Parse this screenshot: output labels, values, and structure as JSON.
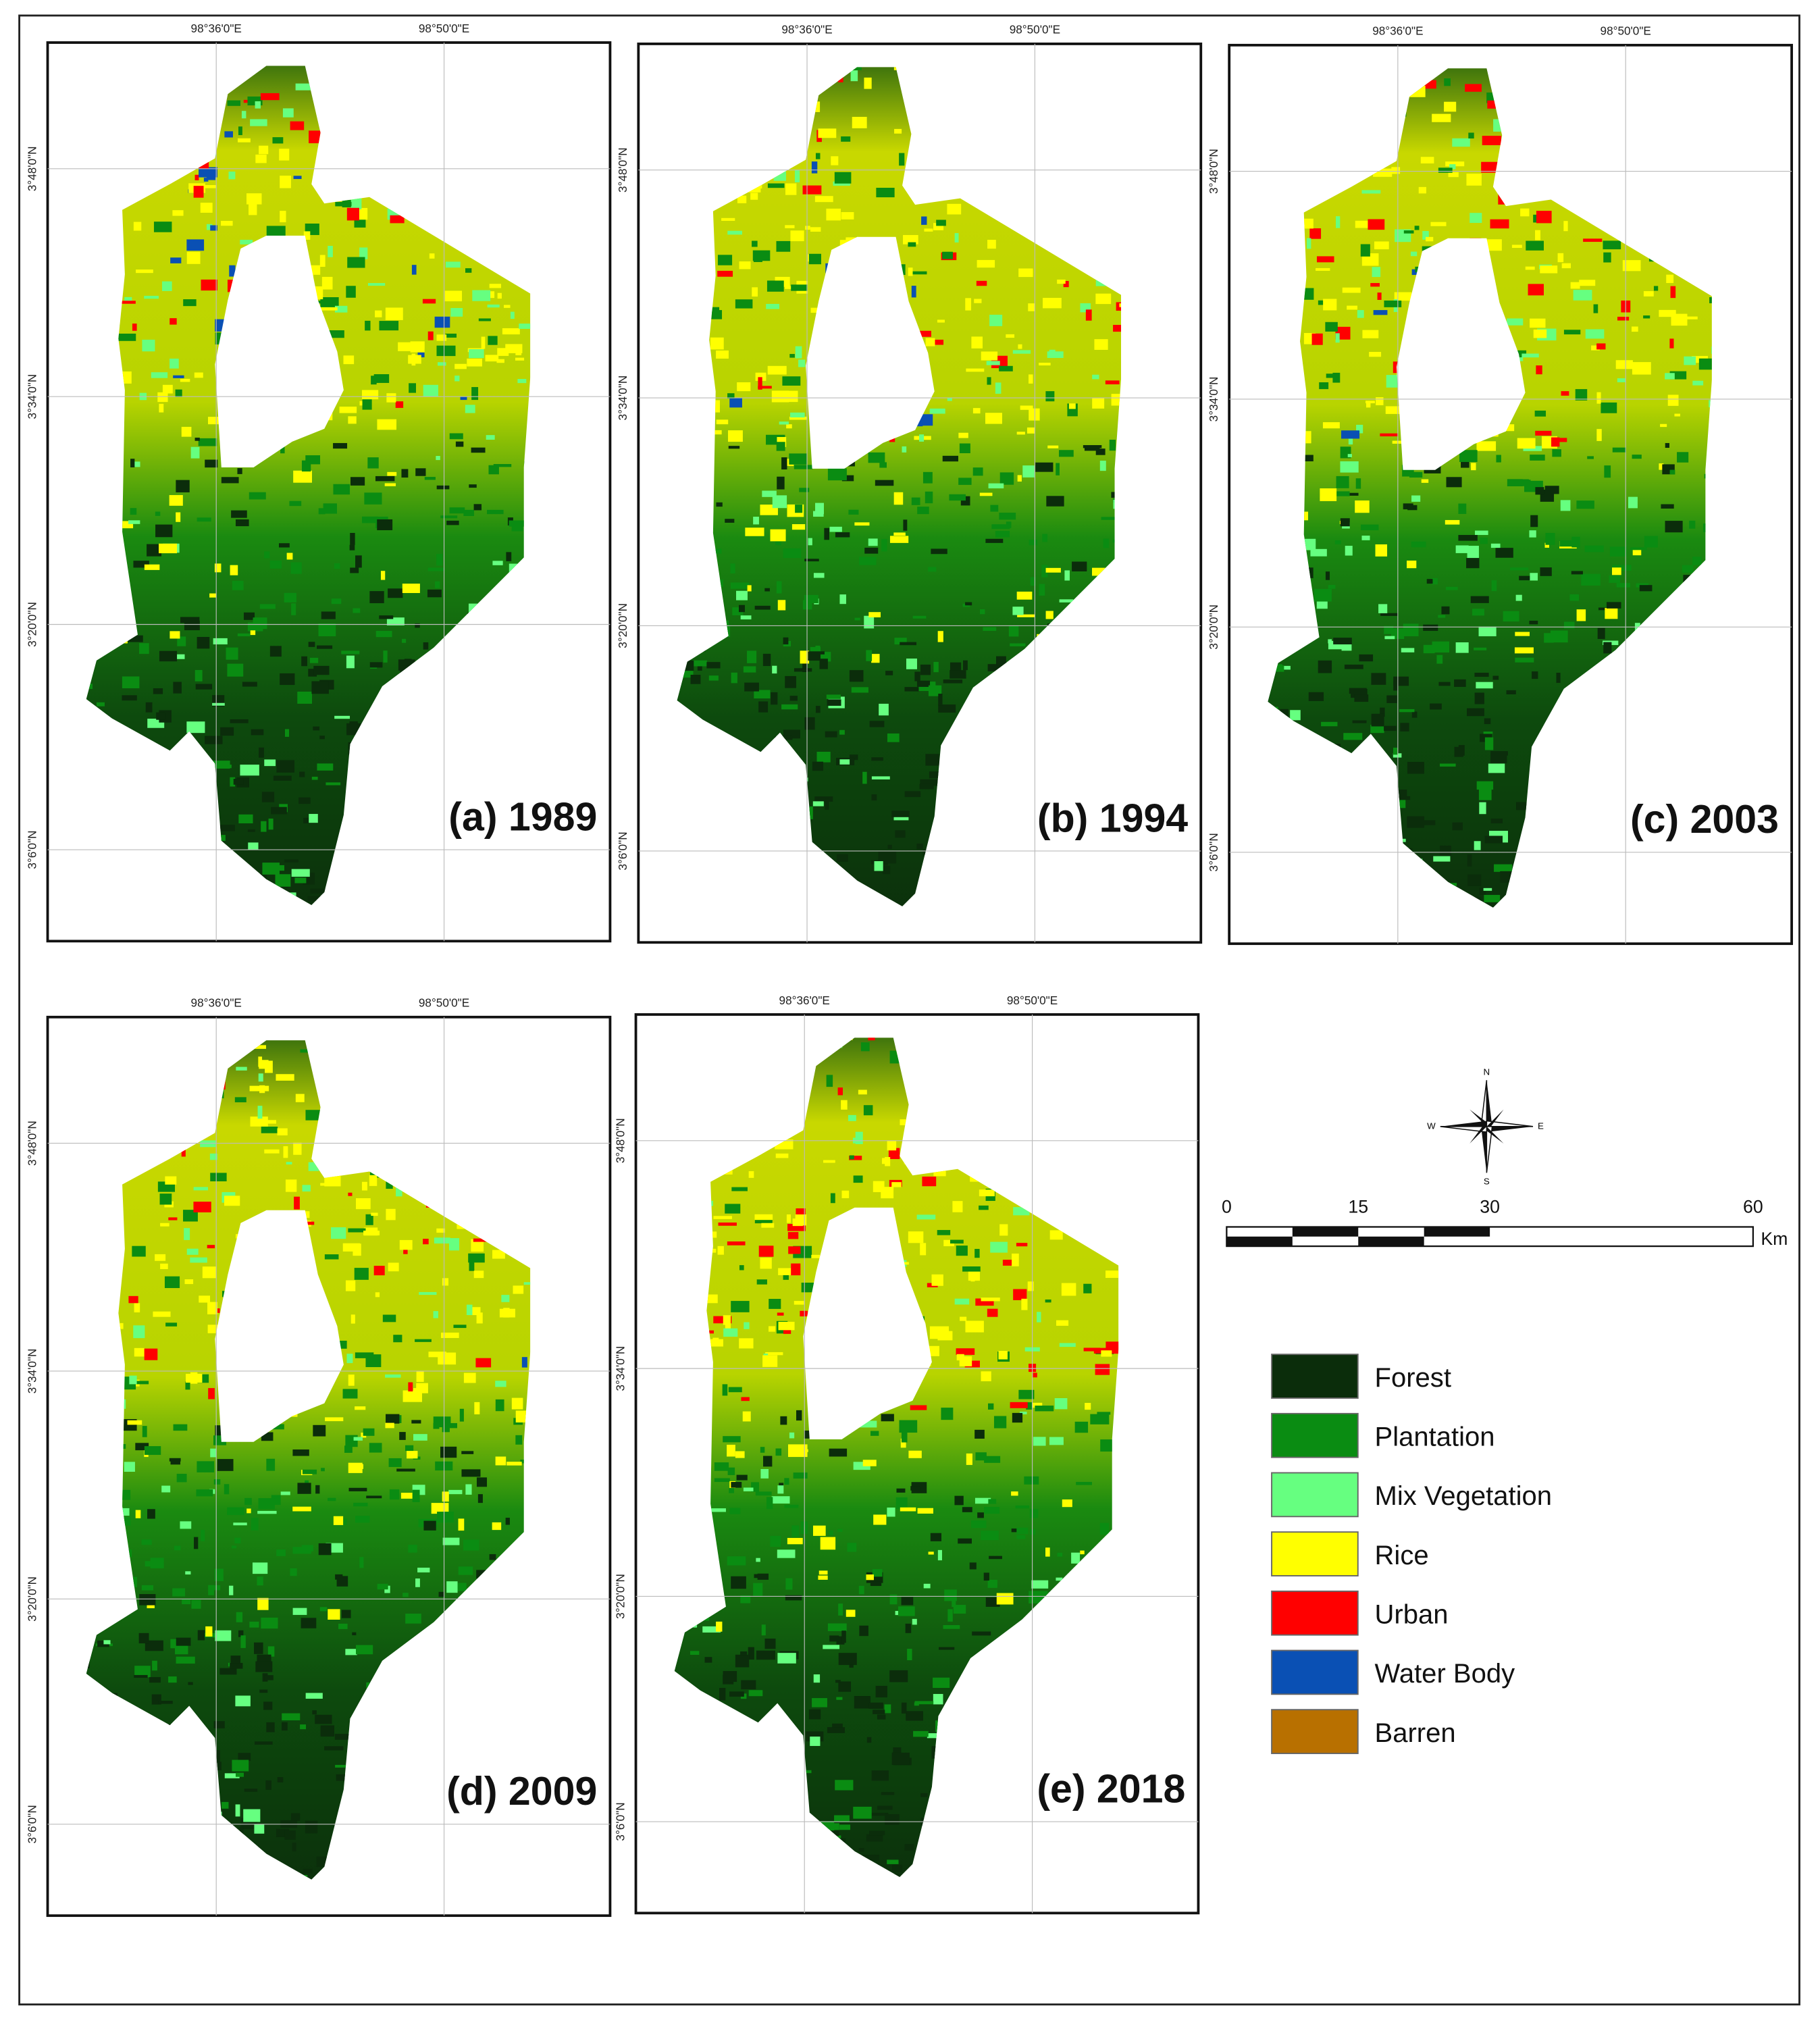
{
  "panels": [
    {
      "label": "(a) 1989"
    },
    {
      "label": "(b) 1994"
    },
    {
      "label": "(c) 2003"
    },
    {
      "label": "(d) 2009"
    },
    {
      "label": "(e) 2018"
    }
  ],
  "longitude_labels": [
    "98°36'0\"E",
    "98°50'0\"E"
  ],
  "latitude_labels": [
    "3°48'0\"N",
    "3°34'0\"N",
    "3°20'0\"N",
    "3°6'0\"N"
  ],
  "north_arrow": {
    "n": "N",
    "e": "E",
    "s": "S",
    "w": "W"
  },
  "scale_bar": {
    "ticks": [
      0,
      15,
      30,
      60
    ],
    "unit": "Km"
  },
  "legend": [
    {
      "name": "Forest",
      "color": "#0b2d0b"
    },
    {
      "name": "Plantation",
      "color": "#0a8c12"
    },
    {
      "name": "Mix Vegetation",
      "color": "#66ff80"
    },
    {
      "name": "Rice",
      "color": "#ffff00"
    },
    {
      "name": "Urban",
      "color": "#ff0000"
    },
    {
      "name": "Water Body",
      "color": "#0a50b4"
    },
    {
      "name": "Barren",
      "color": "#b87000"
    }
  ]
}
